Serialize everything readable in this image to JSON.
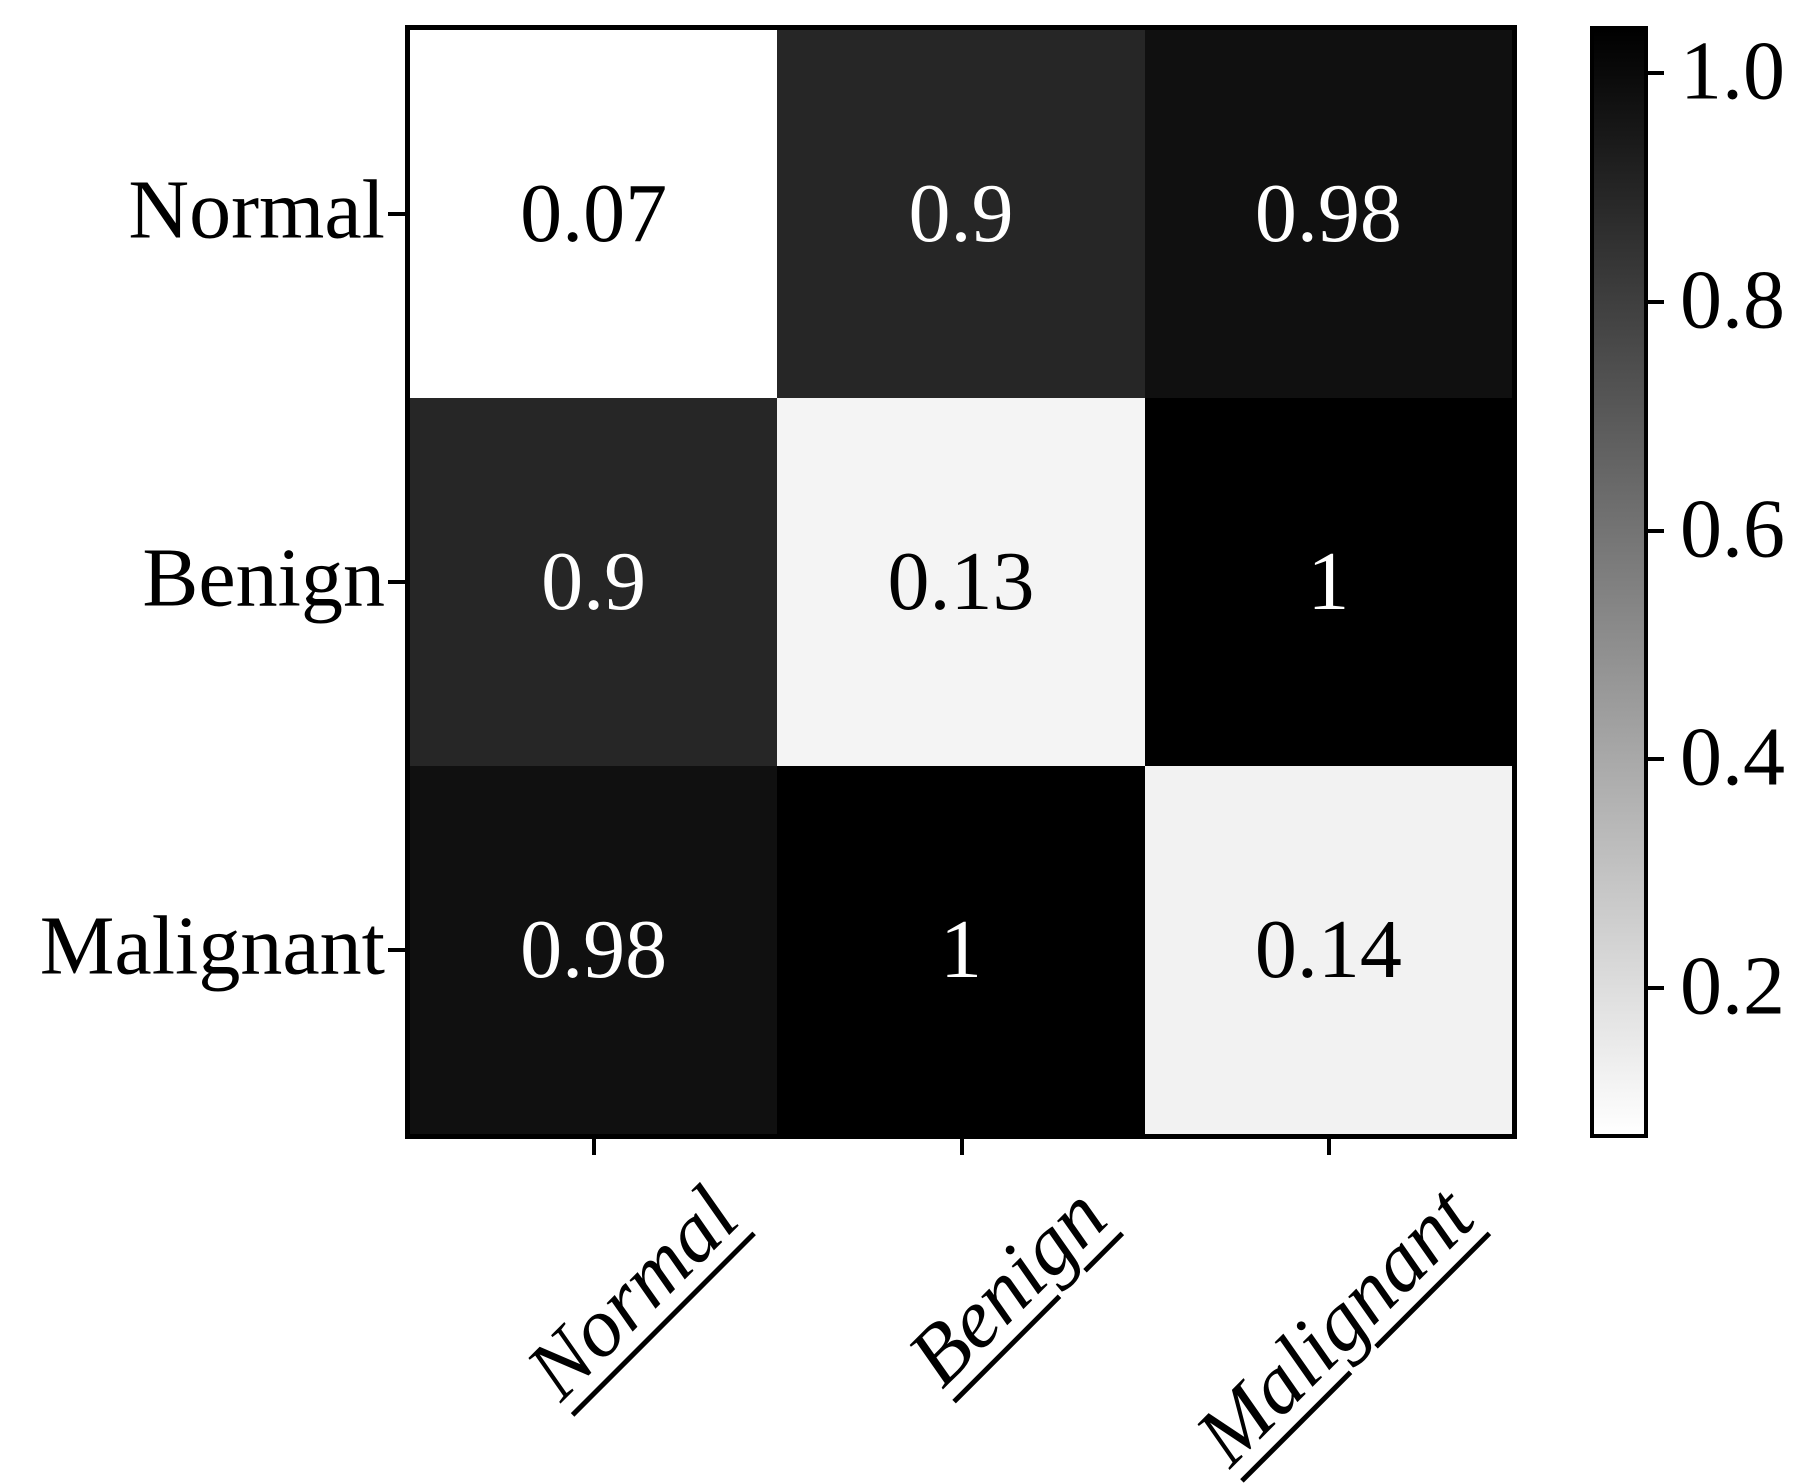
{
  "chart_data": {
    "type": "heatmap",
    "title": "",
    "x_labels": [
      "Normal",
      "Benign",
      "Malignant"
    ],
    "y_labels": [
      "Normal",
      "Benign",
      "Malignant"
    ],
    "matrix": [
      [
        0.07,
        0.9,
        0.98
      ],
      [
        0.9,
        0.13,
        1
      ],
      [
        0.98,
        1,
        0.14
      ]
    ],
    "cell_text": [
      [
        "0.07",
        "0.9",
        "0.98"
      ],
      [
        "0.9",
        "0.13",
        "1"
      ],
      [
        "0.98",
        "1",
        "0.14"
      ]
    ],
    "cell_bg": [
      [
        "#ffffff",
        "#262626",
        "#101010"
      ],
      [
        "#262626",
        "#f4f4f4",
        "#000000"
      ],
      [
        "#101010",
        "#000000",
        "#f2f2f2"
      ]
    ],
    "cell_fg": [
      [
        "#000000",
        "#ffffff",
        "#ffffff"
      ],
      [
        "#ffffff",
        "#000000",
        "#ffffff"
      ],
      [
        "#ffffff",
        "#ffffff",
        "#000000"
      ]
    ],
    "value_range": [
      0.07,
      1.0
    ],
    "colormap": "gray (high = black, low = white)",
    "grid": "off",
    "legend_position": "right",
    "colorbar": {
      "tick_labels": [
        "1.0",
        "0.8",
        "0.6",
        "0.4",
        "0.2"
      ],
      "top_color": "#000000",
      "bottom_color": "#ffffff",
      "frame_color": "#000000"
    },
    "axis_color": "#000000"
  }
}
